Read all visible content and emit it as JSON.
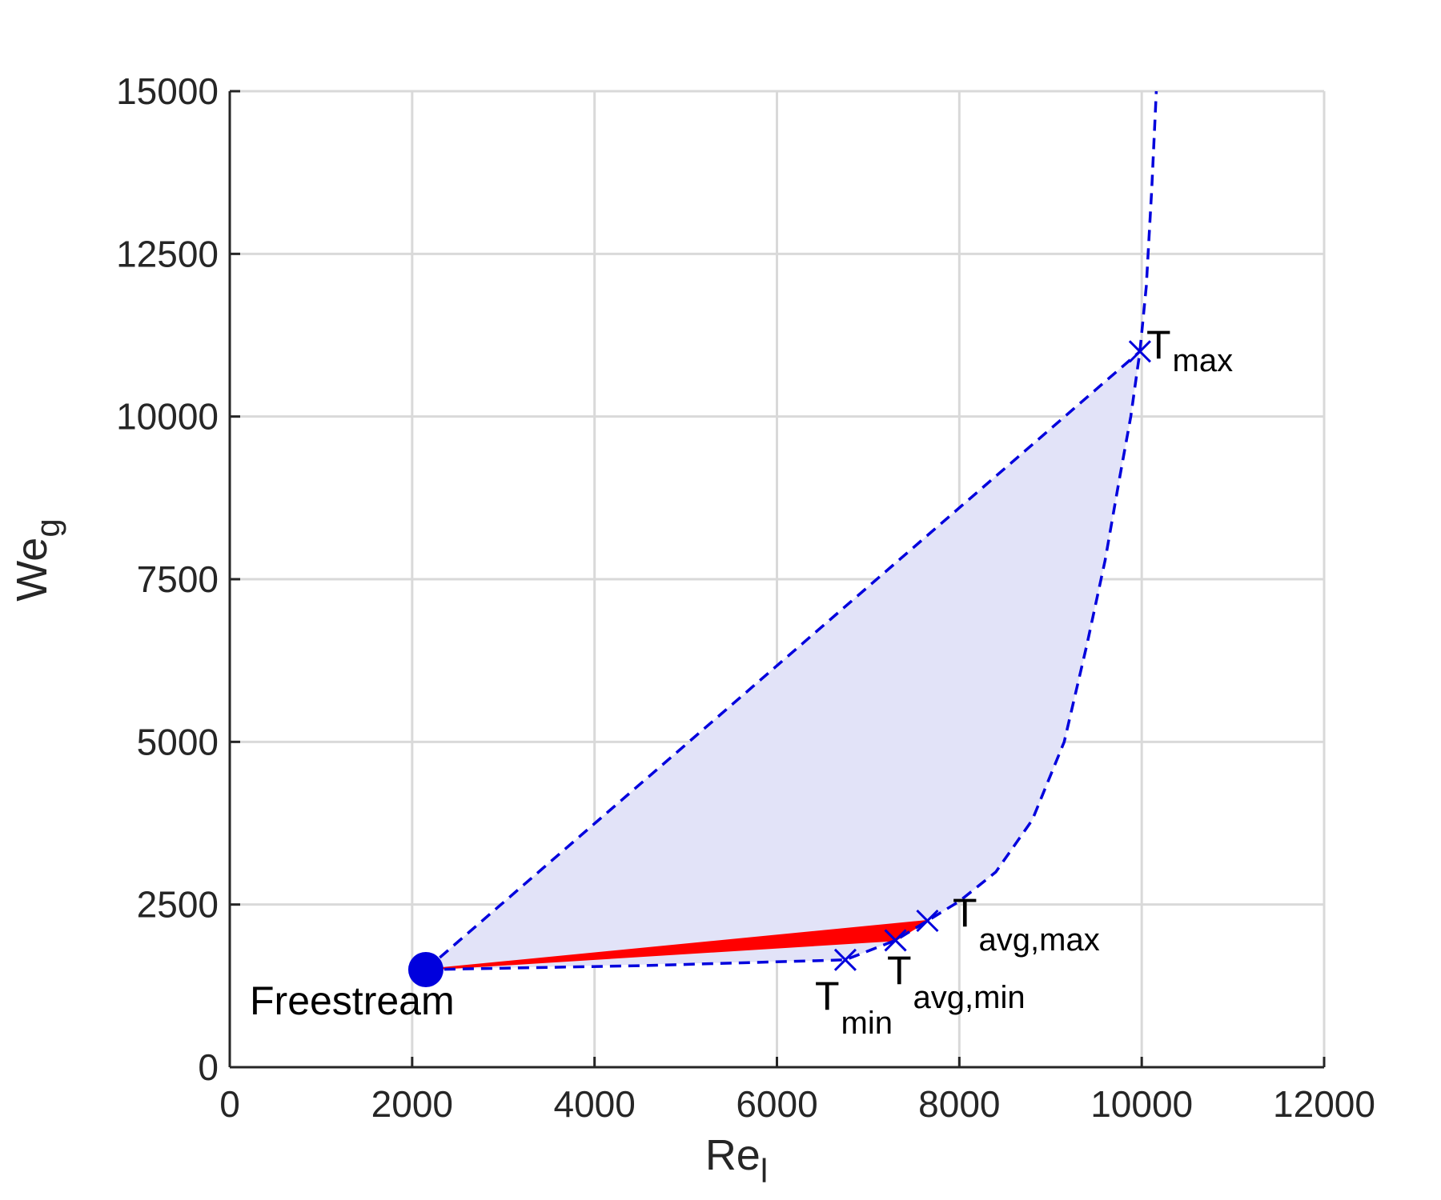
{
  "chart_data": {
    "type": "line",
    "xlabel": {
      "base": "Re",
      "sub": "l"
    },
    "ylabel": {
      "base": "We",
      "sub": "g"
    },
    "xlim": [
      0,
      12000
    ],
    "ylim": [
      0,
      15000
    ],
    "xticks": [
      0,
      2000,
      4000,
      6000,
      8000,
      10000,
      12000
    ],
    "yticks": [
      0,
      2500,
      5000,
      7500,
      10000,
      12500,
      15000
    ],
    "xtick_labels": [
      "0",
      "2000",
      "4000",
      "6000",
      "8000",
      "10000",
      "12000"
    ],
    "ytick_labels": [
      "0",
      "2500",
      "5000",
      "7500",
      "10000",
      "12500",
      "15000"
    ],
    "grid": true,
    "colors": {
      "curve": "#0000dd",
      "region_fill": "#e2e3f8",
      "highlight_fill": "#ff0000",
      "grid": "#d9d9d9",
      "axis": "#262626"
    },
    "shaded_region": {
      "color": "#e2e3f8",
      "upper_line": [
        [
          2150,
          1500
        ],
        [
          9980,
          11000
        ]
      ],
      "lower_curve": [
        [
          2150,
          1500
        ],
        [
          6750,
          1650
        ],
        [
          7300,
          1950
        ],
        [
          7650,
          2250
        ],
        [
          8000,
          2550
        ],
        [
          8400,
          3000
        ],
        [
          8800,
          3800
        ],
        [
          9150,
          5000
        ],
        [
          9400,
          6500
        ],
        [
          9600,
          7800
        ],
        [
          9750,
          9000
        ],
        [
          9880,
          10000
        ],
        [
          9980,
          11000
        ]
      ]
    },
    "highlight_region": {
      "color": "#ff0000",
      "points": [
        [
          2150,
          1500
        ],
        [
          7650,
          2250
        ],
        [
          7300,
          1950
        ],
        [
          2150,
          1500
        ]
      ]
    },
    "dashed_curves": [
      {
        "points": [
          [
            2150,
            1500
          ],
          [
            9980,
            11000
          ]
        ]
      },
      {
        "points": [
          [
            2150,
            1500
          ],
          [
            4500,
            1560
          ],
          [
            6750,
            1650
          ],
          [
            7300,
            1950
          ],
          [
            7650,
            2250
          ],
          [
            8000,
            2550
          ],
          [
            8400,
            3000
          ],
          [
            8800,
            3800
          ],
          [
            9150,
            5000
          ],
          [
            9400,
            6500
          ],
          [
            9600,
            7800
          ],
          [
            9750,
            9000
          ],
          [
            9880,
            10000
          ],
          [
            9980,
            11000
          ],
          [
            10050,
            12000
          ],
          [
            10110,
            13500
          ],
          [
            10160,
            15000
          ]
        ]
      }
    ],
    "freestream_point": {
      "x": 2150,
      "y": 1500,
      "label": "Freestream"
    },
    "markers": [
      {
        "x": 9980,
        "y": 11000,
        "label": "T",
        "sub": "max"
      },
      {
        "x": 7650,
        "y": 2250,
        "label": "T",
        "sub": "avg,max"
      },
      {
        "x": 7300,
        "y": 1950,
        "label": "T",
        "sub": "avg,min"
      },
      {
        "x": 6750,
        "y": 1650,
        "label": "T",
        "sub": "min"
      }
    ]
  }
}
